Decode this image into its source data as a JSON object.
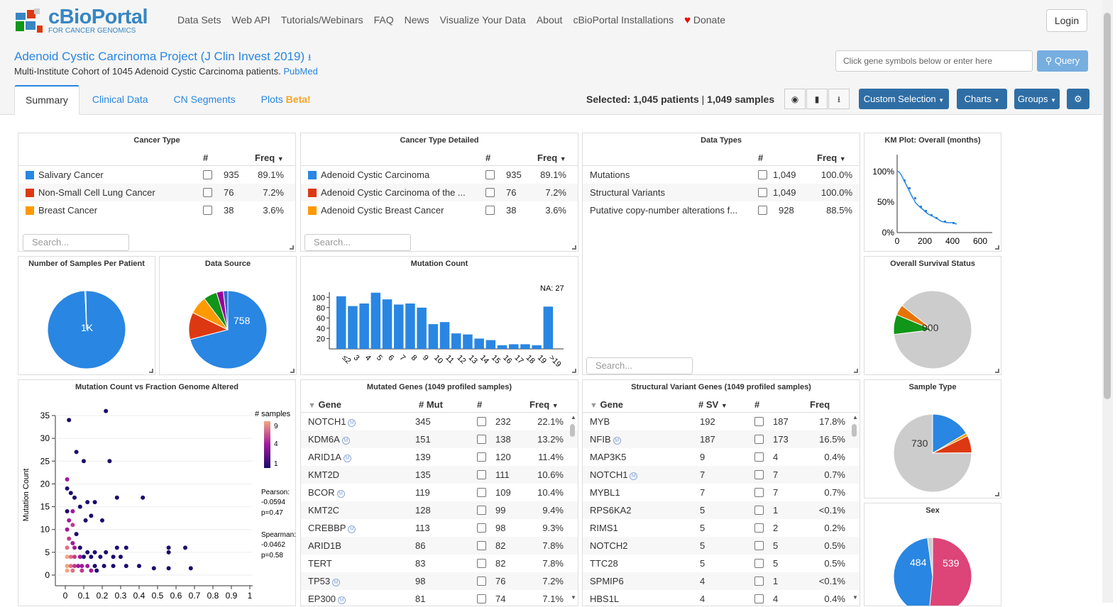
{
  "logo": {
    "title": "cBioPortal",
    "subtitle": "FOR CANCER GENOMICS"
  },
  "nav": [
    "Data Sets",
    "Web API",
    "Tutorials/Webinars",
    "FAQ",
    "News",
    "Visualize Your Data",
    "About",
    "cBioPortal Installations",
    "Donate"
  ],
  "login": "Login",
  "study": {
    "title": "Adenoid Cystic Carcinoma Project (J Clin Invest 2019)",
    "desc": "Multi-Institute Cohort of 1045 Adenoid Cystic Carcinoma patients.",
    "pubmed": "PubMed"
  },
  "query": {
    "placeholder": "Click gene symbols below or enter here",
    "button": "Query"
  },
  "tabs": [
    "Summary",
    "Clinical Data",
    "CN Segments",
    "Plots"
  ],
  "beta": "Beta!",
  "selected": {
    "label": "Selected:",
    "patients": "1,045 patients",
    "sep": "|",
    "samples": "1,049 samples"
  },
  "buttons": {
    "custom": "Custom Selection",
    "charts": "Charts",
    "groups": "Groups"
  },
  "colors": {
    "blue": "#2986e2",
    "red": "#dc3912",
    "orange": "#ff9900",
    "green": "#109618",
    "purple": "#990099",
    "gray": "#cccccc",
    "pink": "#dd4477"
  },
  "cancer_type": {
    "title": "Cancer Type",
    "h_count": "#",
    "h_freq": "Freq",
    "rows": [
      {
        "name": "Salivary Cancer",
        "count": "935",
        "freq": "89.1%"
      },
      {
        "name": "Non-Small Cell Lung Cancer",
        "count": "76",
        "freq": "7.2%"
      },
      {
        "name": "Breast Cancer",
        "count": "38",
        "freq": "3.6%"
      }
    ],
    "search": "Search..."
  },
  "cancer_type_detailed": {
    "title": "Cancer Type Detailed",
    "h_count": "#",
    "h_freq": "Freq",
    "rows": [
      {
        "name": "Adenoid Cystic Carcinoma",
        "count": "935",
        "freq": "89.1%"
      },
      {
        "name": "Adenoid Cystic Carcinoma of the ...",
        "count": "76",
        "freq": "7.2%"
      },
      {
        "name": "Adenoid Cystic Breast Cancer",
        "count": "38",
        "freq": "3.6%"
      }
    ],
    "search": "Search..."
  },
  "data_types": {
    "title": "Data Types",
    "h_count": "#",
    "h_freq": "Freq",
    "rows": [
      {
        "name": "Mutations",
        "count": "1,049",
        "freq": "100.0%"
      },
      {
        "name": "Structural Variants",
        "count": "1,049",
        "freq": "100.0%"
      },
      {
        "name": "Putative copy-number alterations f...",
        "count": "928",
        "freq": "88.5%"
      }
    ],
    "search": "Search..."
  },
  "km": {
    "title": "KM Plot: Overall (months)",
    "yticks": [
      "100%",
      "50%",
      "0%"
    ],
    "xticks": [
      "0",
      "200",
      "400",
      "600"
    ]
  },
  "samples_per_patient": {
    "title": "Number of Samples Per Patient",
    "label": "1K"
  },
  "data_source": {
    "title": "Data Source",
    "label": "758"
  },
  "mutation_count": {
    "title": "Mutation Count",
    "na": "NA: 27",
    "yticks": [
      "100",
      "80",
      "60",
      "40",
      "20"
    ]
  },
  "survival_status": {
    "title": "Overall Survival Status",
    "label": "900"
  },
  "scatter": {
    "title": "Mutation Count vs Fraction Genome Altered",
    "ylabel": "Mutation Count",
    "legend_title": "# samples",
    "legend": [
      "9",
      "4",
      "1"
    ],
    "pearson": [
      "Pearson:",
      "-0.0594",
      "p=0.47"
    ],
    "spearman": [
      "Spearman:",
      "-0.0462",
      "p=0.58"
    ],
    "yticks": [
      "35",
      "30",
      "25",
      "20",
      "15",
      "10",
      "5",
      "0"
    ],
    "xticks": [
      "0",
      "0.1",
      "0.2",
      "0.3",
      "0.4",
      "0.5",
      "0.6",
      "0.7",
      "0.8",
      "0.9",
      "1"
    ]
  },
  "mutated_genes": {
    "title": "Mutated Genes (1049 profiled samples)",
    "h_gene": "Gene",
    "h_mut": "# Mut",
    "h_count": "#",
    "h_freq": "Freq",
    "rows": [
      {
        "gene": "NOTCH1",
        "mut": "345",
        "count": "232",
        "freq": "22.1%",
        "m": true
      },
      {
        "gene": "KDM6A",
        "mut": "151",
        "count": "138",
        "freq": "13.2%",
        "m": true
      },
      {
        "gene": "ARID1A",
        "mut": "139",
        "count": "120",
        "freq": "11.4%",
        "m": true
      },
      {
        "gene": "KMT2D",
        "mut": "135",
        "count": "111",
        "freq": "10.6%",
        "m": false
      },
      {
        "gene": "BCOR",
        "mut": "119",
        "count": "109",
        "freq": "10.4%",
        "m": true
      },
      {
        "gene": "KMT2C",
        "mut": "128",
        "count": "99",
        "freq": "9.4%",
        "m": false
      },
      {
        "gene": "CREBBP",
        "mut": "113",
        "count": "98",
        "freq": "9.3%",
        "m": true
      },
      {
        "gene": "ARID1B",
        "mut": "86",
        "count": "82",
        "freq": "7.8%",
        "m": false
      },
      {
        "gene": "TERT",
        "mut": "83",
        "count": "82",
        "freq": "7.8%",
        "m": false
      },
      {
        "gene": "TP53",
        "mut": "98",
        "count": "76",
        "freq": "7.2%",
        "m": true
      },
      {
        "gene": "EP300",
        "mut": "81",
        "count": "74",
        "freq": "7.1%",
        "m": true
      }
    ]
  },
  "sv_genes": {
    "title": "Structural Variant Genes (1049 profiled samples)",
    "h_gene": "Gene",
    "h_sv": "# SV",
    "h_count": "#",
    "h_freq": "Freq",
    "rows": [
      {
        "gene": "MYB",
        "sv": "192",
        "count": "187",
        "freq": "17.8%",
        "m": false
      },
      {
        "gene": "NFIB",
        "sv": "187",
        "count": "173",
        "freq": "16.5%",
        "m": true
      },
      {
        "gene": "MAP3K5",
        "sv": "9",
        "count": "4",
        "freq": "0.4%",
        "m": false
      },
      {
        "gene": "NOTCH1",
        "sv": "7",
        "count": "7",
        "freq": "0.7%",
        "m": true
      },
      {
        "gene": "MYBL1",
        "sv": "7",
        "count": "7",
        "freq": "0.7%",
        "m": false
      },
      {
        "gene": "RPS6KA2",
        "sv": "5",
        "count": "1",
        "freq": "<0.1%",
        "m": false
      },
      {
        "gene": "RIMS1",
        "sv": "5",
        "count": "2",
        "freq": "0.2%",
        "m": false
      },
      {
        "gene": "NOTCH2",
        "sv": "5",
        "count": "5",
        "freq": "0.5%",
        "m": false
      },
      {
        "gene": "TTC28",
        "sv": "5",
        "count": "5",
        "freq": "0.5%",
        "m": false
      },
      {
        "gene": "SPMIP6",
        "sv": "4",
        "count": "1",
        "freq": "<0.1%",
        "m": false
      },
      {
        "gene": "HBS1L",
        "sv": "4",
        "count": "4",
        "freq": "0.4%",
        "m": false
      }
    ]
  },
  "sample_type": {
    "title": "Sample Type",
    "label": "730"
  },
  "sex": {
    "title": "Sex",
    "label_a": "484",
    "label_b": "539"
  },
  "chart_data": [
    {
      "type": "bar",
      "title": "Mutation Count",
      "categories": [
        "≤2",
        "3",
        "4",
        "5",
        "6",
        "7",
        "8",
        "9",
        "10",
        "11",
        "12",
        "13",
        "14",
        "15",
        "16",
        "17",
        "18",
        "19",
        ">19"
      ],
      "values": [
        102,
        83,
        88,
        109,
        96,
        86,
        88,
        80,
        48,
        52,
        30,
        28,
        20,
        17,
        7,
        9,
        9,
        7,
        82
      ],
      "ylim": [
        0,
        110
      ]
    },
    {
      "type": "pie",
      "title": "Number of Samples Per Patient",
      "values": [
        1041,
        4
      ]
    },
    {
      "type": "pie",
      "title": "Data Source",
      "values": [
        758,
        120,
        80,
        60,
        30,
        20
      ]
    },
    {
      "type": "pie",
      "title": "Overall Survival Status",
      "values": [
        900,
        85,
        45
      ]
    },
    {
      "type": "pie",
      "title": "Sample Type",
      "values": [
        160,
        12,
        70,
        730
      ]
    },
    {
      "type": "pie",
      "title": "Sex",
      "values": [
        539,
        484,
        22
      ]
    }
  ]
}
